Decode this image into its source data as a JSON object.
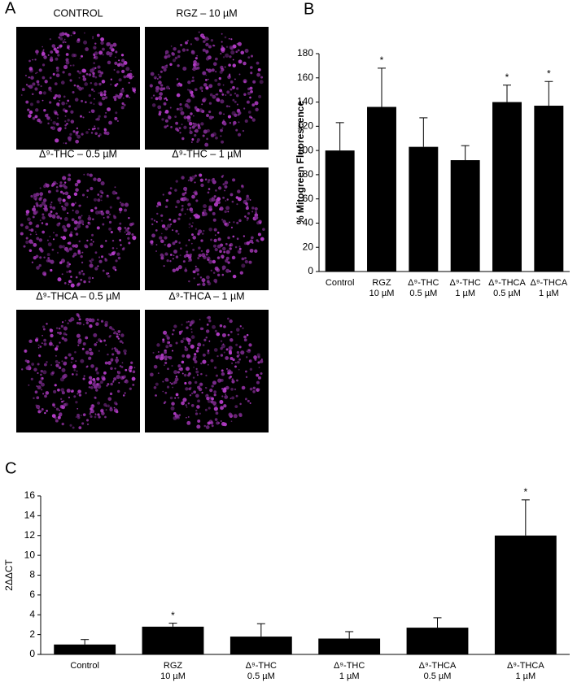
{
  "panel_a": {
    "letter": "A",
    "images": [
      "CONTROL",
      "RGZ – 10 µM",
      "Δ⁹-THC – 0.5 µM",
      "Δ⁹-THC – 1 µM",
      "Δ⁹-THCA – 0.5 µM",
      "Δ⁹-THCA – 1 µM"
    ]
  },
  "chart_data": [
    {
      "type": "bar",
      "panel_label": "B",
      "y_label": "% Mitogreen Fluorescence",
      "categories": [
        "Control",
        "RGZ\n10 µM",
        "Δ⁹-THC\n0.5 µM",
        "Δ⁹-THC\n1 µM",
        "Δ⁹-THCA\n0.5 µM",
        "Δ⁹-THCA\n1 µM"
      ],
      "values": [
        100,
        136,
        103,
        92,
        140,
        137
      ],
      "errors": [
        23,
        32,
        24,
        12,
        14,
        20
      ],
      "significance": [
        null,
        "*",
        null,
        null,
        "*",
        "*"
      ],
      "color": "#000000",
      "ylim": [
        0,
        180
      ],
      "yticks": [
        0,
        20,
        40,
        60,
        80,
        100,
        120,
        140,
        160,
        180
      ]
    },
    {
      "type": "bar",
      "panel_label": "C",
      "y_label": "2ΔΔCT",
      "categories": [
        "Control",
        "RGZ\n10 µM",
        "Δ⁹-THC\n0.5 µM",
        "Δ⁹-THC\n1 µM",
        "Δ⁹-THCA\n0.5 µM",
        "Δ⁹-THCA\n1 µM"
      ],
      "values": [
        1.0,
        2.8,
        1.8,
        1.6,
        2.7,
        12
      ],
      "errors": [
        0.5,
        0.35,
        1.3,
        0.7,
        1.0,
        3.6
      ],
      "significance": [
        null,
        "*",
        null,
        null,
        null,
        "*"
      ],
      "color": "#000000",
      "ylim": [
        0,
        16
      ],
      "yticks": [
        0,
        2,
        4,
        6,
        8,
        10,
        12,
        14,
        16
      ]
    }
  ]
}
